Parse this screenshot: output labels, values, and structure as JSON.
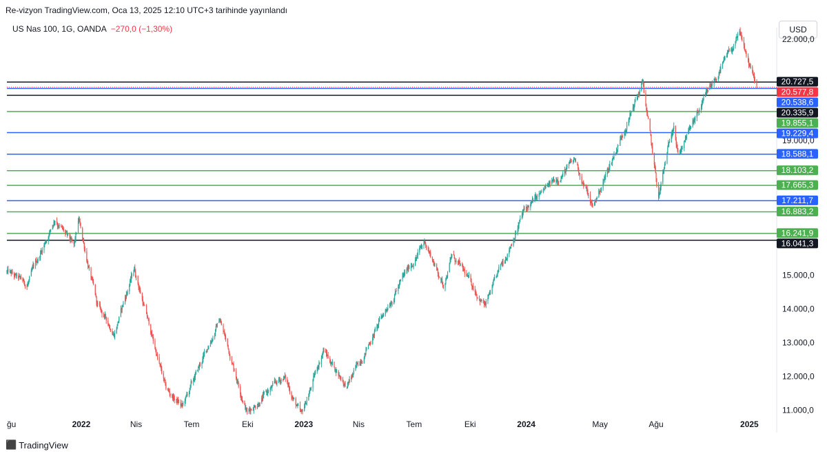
{
  "header": {
    "published": "Re-vizyon TradingView.com, Oca 13, 2025 12:10 UTC+3 tarihinde yayınlandı",
    "symbol": "US Nas 100, 1G, OANDA",
    "change": "−270,0 (−1,30%)",
    "currency_button": "USD"
  },
  "brand": {
    "logo_icon": "tradingview-logo-icon",
    "name": "TradingView"
  },
  "colors": {
    "up": "#26a69a",
    "down": "#ef5350",
    "black": "#131722",
    "blue": "#2962ff",
    "green": "#4caf50",
    "red": "#f23645"
  },
  "chart_data": {
    "type": "candlestick",
    "ylim": [
      10850,
      22200
    ],
    "y_ticks": [
      "11.000,0",
      "12.000,0",
      "13.000,0",
      "14.000,0",
      "15.000,0",
      "19.000,0",
      "22.000,0"
    ],
    "y_tick_values": [
      11000,
      12000,
      13000,
      14000,
      15000,
      19000,
      22000
    ],
    "x_ticks": [
      "ğu",
      "2022",
      "Nis",
      "Tem",
      "Eki",
      "2023",
      "Nis",
      "Tem",
      "Eki",
      "2024",
      "May",
      "Ağu",
      "2025"
    ],
    "x_tick_dates": [
      "2021-09-01",
      "2022-01-01",
      "2022-04-01",
      "2022-07-01",
      "2022-10-01",
      "2023-01-01",
      "2023-04-01",
      "2023-07-01",
      "2023-10-01",
      "2024-01-01",
      "2024-05-01",
      "2024-08-01",
      "2025-01-01"
    ],
    "x_tick_bold": [
      false,
      true,
      false,
      false,
      false,
      true,
      false,
      false,
      false,
      true,
      false,
      false,
      true
    ],
    "date_range": [
      "2021-09-01",
      "2025-01-13"
    ],
    "price_path": [
      [
        "2021-09-01",
        15100
      ],
      [
        "2021-10-04",
        14700
      ],
      [
        "2021-11-19",
        16700
      ],
      [
        "2021-12-20",
        15800
      ],
      [
        "2021-12-28",
        16600
      ],
      [
        "2022-01-27",
        14100
      ],
      [
        "2022-02-24",
        13300
      ],
      [
        "2022-03-29",
        15200
      ],
      [
        "2022-05-20",
        11600
      ],
      [
        "2022-06-16",
        11100
      ],
      [
        "2022-08-16",
        13700
      ],
      [
        "2022-09-30",
        10950
      ],
      [
        "2022-11-30",
        12000
      ],
      [
        "2022-12-28",
        10800
      ],
      [
        "2023-02-02",
        12800
      ],
      [
        "2023-03-13",
        11700
      ],
      [
        "2023-05-30",
        14500
      ],
      [
        "2023-07-19",
        16000
      ],
      [
        "2023-08-18",
        14700
      ],
      [
        "2023-09-01",
        15600
      ],
      [
        "2023-10-26",
        14100
      ],
      [
        "2023-12-28",
        16900
      ],
      [
        "2024-03-21",
        18400
      ],
      [
        "2024-04-19",
        17000
      ],
      [
        "2024-07-10",
        20700
      ],
      [
        "2024-08-05",
        17300
      ],
      [
        "2024-08-30",
        19600
      ],
      [
        "2024-09-06",
        18600
      ],
      [
        "2024-11-11",
        21000
      ],
      [
        "2024-12-16",
        22100
      ],
      [
        "2025-01-13",
        20578
      ]
    ],
    "levels": [
      {
        "value": 20727.5,
        "label": "20.727,5",
        "color": "#131722"
      },
      {
        "value": 20577.8,
        "label": "20.577,8",
        "color": "#f23645",
        "current": true
      },
      {
        "value": 20538.6,
        "label": "20.538,6",
        "color": "#2962ff"
      },
      {
        "value": 20335.9,
        "label": "20.335,9",
        "color": "#131722"
      },
      {
        "value": 19855.1,
        "label": "19.855,1",
        "color": "#4caf50"
      },
      {
        "value": 19229.4,
        "label": "19.229,4",
        "color": "#2962ff"
      },
      {
        "value": 18588.1,
        "label": "18.588,1",
        "color": "#2962ff"
      },
      {
        "value": 18103.2,
        "label": "18.103,2",
        "color": "#4caf50"
      },
      {
        "value": 17665.3,
        "label": "17.665,3",
        "color": "#4caf50"
      },
      {
        "value": 17211.7,
        "label": "17.211,7",
        "color": "#2962ff"
      },
      {
        "value": 16883.2,
        "label": "16.883,2",
        "color": "#4caf50"
      },
      {
        "value": 16241.9,
        "label": "16.241,9",
        "color": "#4caf50"
      },
      {
        "value": 16041.3,
        "label": "16.041,3",
        "color": "#131722"
      }
    ]
  }
}
